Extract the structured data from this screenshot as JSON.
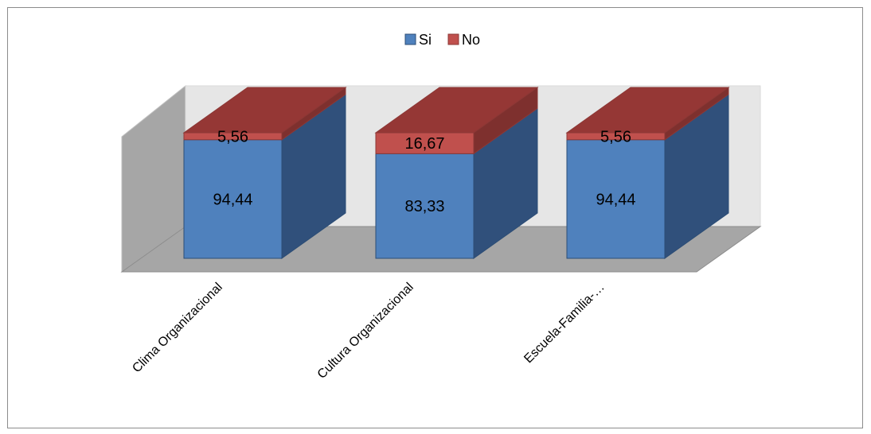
{
  "chart_data": {
    "type": "bar",
    "stacked": true,
    "three_d": true,
    "categories": [
      "Clima Organizacional",
      "Cultura Organizacional",
      "Escuela-Familia-…"
    ],
    "series": [
      {
        "name": "Si",
        "values": [
          94.44,
          83.33,
          94.44
        ],
        "labels": [
          "94,44",
          "83,33",
          "94,44"
        ]
      },
      {
        "name": "No",
        "values": [
          5.56,
          16.67,
          5.56
        ],
        "labels": [
          "5,56",
          "16,67",
          "5,56"
        ]
      }
    ],
    "ylim": [
      0,
      100
    ],
    "legend_position": "top",
    "grid": false,
    "axis_labels_visible": false,
    "colors": {
      "Si_front": "#4f81bd",
      "Si_side": "#30507b",
      "Si_top": "#5f8fcb",
      "No_front": "#c0504d",
      "No_side": "#7e302e",
      "No_top": "#953735",
      "back_wall": "#e6e6e6",
      "side_wall": "#a6a6a6",
      "floor": "#a6a6a6",
      "edge": "#2c4d75",
      "edge_no": "#8c3836"
    }
  }
}
